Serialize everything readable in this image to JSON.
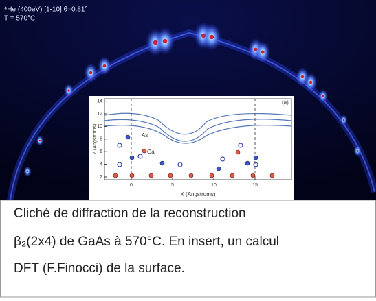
{
  "image": {
    "label_line1": "⁴He (400eV) [1-10] θ=0.81°",
    "label_line2": "T = 570°C"
  },
  "inset": {
    "panel_label": "(a)",
    "y_label": "Z (Angstroms)",
    "x_label": "X (Angstroms)",
    "x_ticks": [
      0,
      5,
      10,
      15
    ],
    "y_ticks": [
      2,
      4,
      6,
      8,
      10,
      12,
      14
    ],
    "atom_labels": [
      "As",
      "Ga"
    ]
  },
  "caption": {
    "lines": [
      "Cliché de diffraction de la reconstruction",
      "β₂(2x4) de GaAs à 570°C.  En insert, un calcul",
      "DFT (F.Finocci)  de la surface."
    ]
  }
}
